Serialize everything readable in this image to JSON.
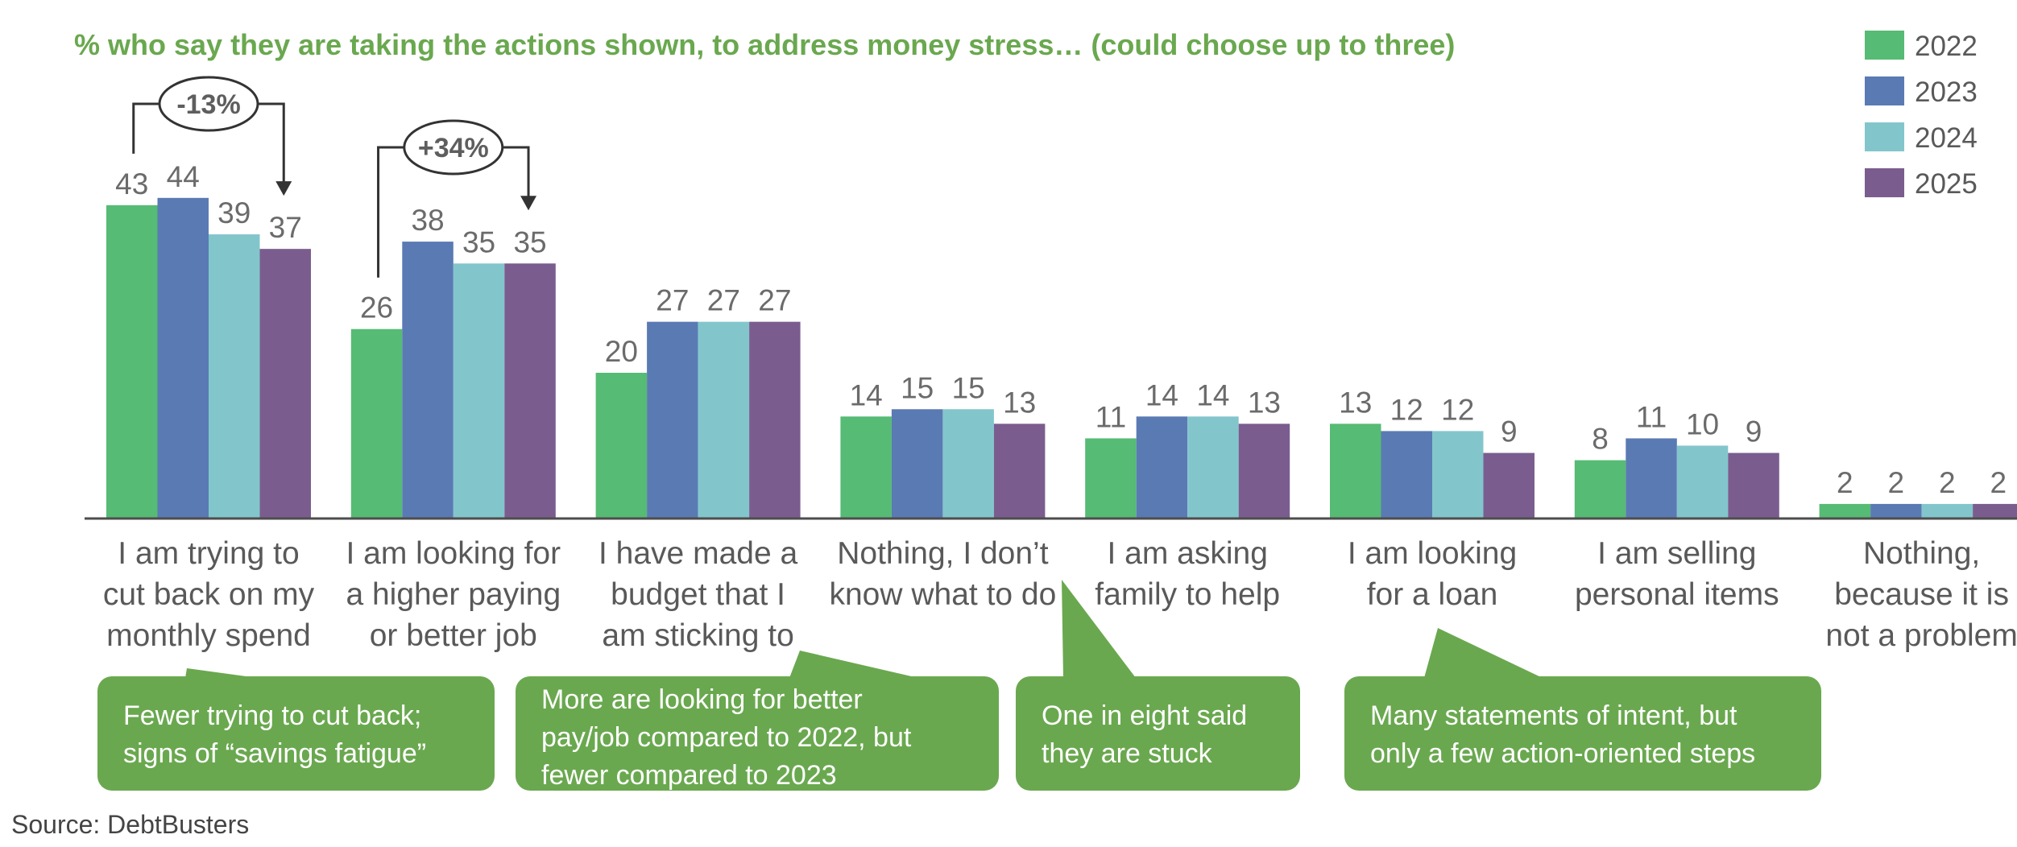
{
  "title": "% who say they are taking the actions shown, to address money stress… (could choose up to three)",
  "source": "Source: DebtBusters",
  "colors": {
    "title": "#6aa84f",
    "note_bg": "#6aa84f",
    "series": [
      "#56bb74",
      "#5a7ab4",
      "#82c6cc",
      "#7a5d8e"
    ]
  },
  "chart_data": {
    "type": "bar",
    "title": "% who say they are taking the actions shown, to address money stress… (could choose up to three)",
    "xlabel": "",
    "ylabel": "",
    "ylim": [
      0,
      44
    ],
    "grid": false,
    "legend_position": "top-right",
    "categories": [
      [
        "I am trying to",
        "cut back on my",
        "monthly spend"
      ],
      [
        "I am looking for",
        "a higher paying",
        "or better job"
      ],
      [
        "I have made a",
        "budget that I",
        "am sticking to"
      ],
      [
        "Nothing, I don’t",
        "know what to do"
      ],
      [
        "I am asking",
        "family to help"
      ],
      [
        "I am looking",
        "for a loan"
      ],
      [
        "I am selling",
        "personal items"
      ],
      [
        "Nothing,",
        "because it is",
        "not a problem"
      ]
    ],
    "series": [
      {
        "name": "2022",
        "values": [
          43,
          26,
          20,
          14,
          11,
          13,
          8,
          2
        ]
      },
      {
        "name": "2023",
        "values": [
          44,
          38,
          27,
          15,
          14,
          12,
          11,
          2
        ]
      },
      {
        "name": "2024",
        "values": [
          39,
          35,
          27,
          15,
          14,
          12,
          10,
          2
        ]
      },
      {
        "name": "2025",
        "values": [
          37,
          35,
          27,
          13,
          13,
          9,
          9,
          2
        ]
      }
    ],
    "annotations": [
      {
        "label": "-13%",
        "category": 0,
        "from_series": 0,
        "to_series": 3
      },
      {
        "label": "+34%",
        "category": 1,
        "from_series": 0,
        "to_series": 3
      }
    ]
  },
  "callouts": [
    {
      "lines": [
        "Fewer trying to cut back;",
        "signs of “savings fatigue”"
      ]
    },
    {
      "lines": [
        "More are looking for better",
        "pay/job compared to 2022, but",
        "fewer compared to 2023"
      ]
    },
    {
      "lines": [
        "One in eight said",
        "they are stuck"
      ]
    },
    {
      "lines": [
        "Many statements of intent, but",
        "only a few action-oriented steps"
      ]
    }
  ]
}
